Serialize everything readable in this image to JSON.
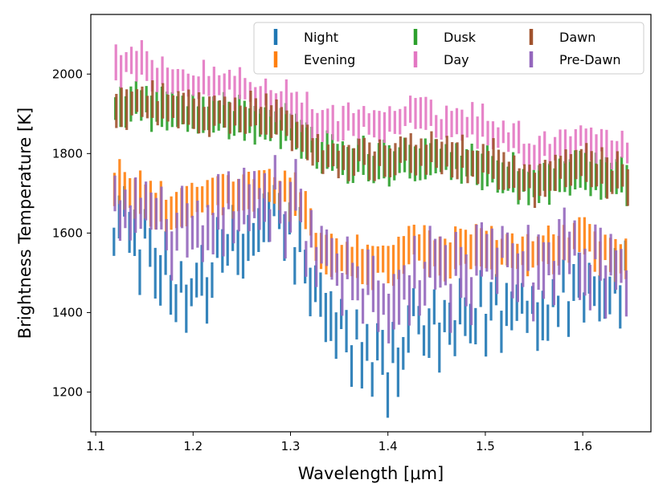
{
  "chart_data": {
    "type": "errorbar",
    "xlabel": "Wavelength [μm]",
    "ylabel": "Brightness Temperature [K]",
    "xlim": [
      1.095,
      1.67
    ],
    "ylim": [
      1100,
      2150
    ],
    "x_ticks": [
      1.1,
      1.2,
      1.3,
      1.4,
      1.5,
      1.6
    ],
    "x_tick_labels": [
      "1.1",
      "1.2",
      "1.3",
      "1.4",
      "1.5",
      "1.6"
    ],
    "y_ticks": [
      1200,
      1400,
      1600,
      1800,
      2000
    ],
    "y_tick_labels": [
      "1200",
      "1400",
      "1600",
      "1800",
      "2000"
    ],
    "grid": false,
    "legend": {
      "placement": "top-right",
      "columns": 3
    },
    "x_range": [
      1.12,
      1.645
    ],
    "n_points": 100,
    "series": [
      {
        "name": "Night",
        "color": "#1f77b4",
        "knots_x": [
          1.12,
          1.15,
          1.18,
          1.22,
          1.26,
          1.28,
          1.31,
          1.33,
          1.37,
          1.4,
          1.43,
          1.46,
          1.5,
          1.55,
          1.6,
          1.645
        ],
        "knots_y": [
          1650,
          1560,
          1450,
          1510,
          1580,
          1660,
          1560,
          1400,
          1310,
          1250,
          1360,
          1330,
          1400,
          1420,
          1470,
          1470
        ],
        "error": 50
      },
      {
        "name": "Evening",
        "color": "#ff7f0e",
        "knots_x": [
          1.12,
          1.15,
          1.18,
          1.22,
          1.26,
          1.28,
          1.31,
          1.33,
          1.37,
          1.4,
          1.43,
          1.46,
          1.5,
          1.55,
          1.6,
          1.645
        ],
        "knots_y": [
          1720,
          1690,
          1640,
          1690,
          1700,
          1720,
          1680,
          1560,
          1530,
          1520,
          1570,
          1540,
          1560,
          1540,
          1580,
          1520
        ],
        "error": 45
      },
      {
        "name": "Dusk",
        "color": "#2ca02c",
        "knots_x": [
          1.12,
          1.14,
          1.18,
          1.22,
          1.26,
          1.3,
          1.33,
          1.37,
          1.4,
          1.42,
          1.45,
          1.5,
          1.55,
          1.6,
          1.645
        ],
        "knots_y": [
          1900,
          1925,
          1905,
          1895,
          1890,
          1860,
          1800,
          1780,
          1775,
          1795,
          1790,
          1760,
          1720,
          1760,
          1725
        ],
        "error": 40
      },
      {
        "name": "Day",
        "color": "#e377c2",
        "knots_x": [
          1.12,
          1.14,
          1.18,
          1.22,
          1.26,
          1.3,
          1.33,
          1.37,
          1.4,
          1.42,
          1.45,
          1.5,
          1.55,
          1.6,
          1.645
        ],
        "knots_y": [
          2010,
          2030,
          1985,
          1975,
          1955,
          1920,
          1870,
          1880,
          1870,
          1895,
          1880,
          1870,
          1800,
          1840,
          1800
        ],
        "error": 35
      },
      {
        "name": "Dawn",
        "color": "#a0522d",
        "knots_x": [
          1.12,
          1.14,
          1.18,
          1.22,
          1.26,
          1.3,
          1.33,
          1.37,
          1.4,
          1.42,
          1.45,
          1.5,
          1.55,
          1.6,
          1.645
        ],
        "knots_y": [
          1910,
          1935,
          1910,
          1905,
          1895,
          1870,
          1790,
          1790,
          1780,
          1800,
          1800,
          1775,
          1725,
          1770,
          1730
        ],
        "error": 40
      },
      {
        "name": "Pre-Dawn",
        "color": "#9467bd",
        "knots_x": [
          1.12,
          1.15,
          1.18,
          1.22,
          1.26,
          1.28,
          1.31,
          1.33,
          1.37,
          1.4,
          1.43,
          1.46,
          1.5,
          1.55,
          1.6,
          1.645
        ],
        "knots_y": [
          1680,
          1620,
          1580,
          1630,
          1660,
          1690,
          1640,
          1500,
          1450,
          1440,
          1510,
          1480,
          1510,
          1500,
          1540,
          1480
        ],
        "error": 55
      }
    ]
  }
}
